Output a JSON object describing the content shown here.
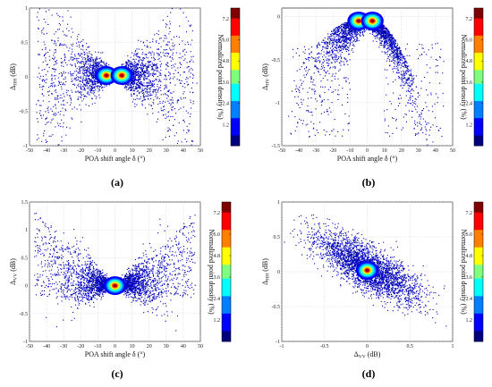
{
  "colorbar": {
    "title": "Normalized point density (%)",
    "ticks": [
      "7.2",
      "6.0",
      "4.8",
      "3.6",
      "2.4",
      "1.2"
    ],
    "colors": [
      "#00007f",
      "#0000ff",
      "#007fff",
      "#00ffff",
      "#7fff7f",
      "#ffff00",
      "#ff7f00",
      "#ff0000",
      "#7f0000"
    ]
  },
  "chart_data": [
    {
      "type": "scatter",
      "panel_label": "(a)",
      "xlabel": "POA shift angle δ (°)",
      "ylabel": "ΔHH (dB)",
      "ylabel_main": "Δ",
      "ylabel_sub": "HH",
      "xlim": [
        -50,
        50
      ],
      "ylim": [
        -1,
        1
      ],
      "xticks": [
        "-50",
        "-40",
        "-30",
        "-20",
        "-10",
        "0",
        "10",
        "20",
        "30",
        "40",
        "50"
      ],
      "yticks": [
        "1",
        "0.5",
        "0",
        "-0.5",
        "-1"
      ],
      "grid": true,
      "pattern": "butterfly_a",
      "density_peaks": [
        [
          -5,
          0.02
        ],
        [
          4,
          0.02
        ]
      ],
      "colorbar_range": [
        0,
        7.8
      ]
    },
    {
      "type": "scatter",
      "panel_label": "(b)",
      "xlabel": "POA shift angle δ (°)",
      "ylabel": "ΔHV (dB)",
      "ylabel_main": "Δ",
      "ylabel_sub": "HV",
      "xlim": [
        -50,
        50
      ],
      "ylim": [
        -1.5,
        0.1
      ],
      "xticks": [
        "-50",
        "-40",
        "-30",
        "-20",
        "-10",
        "0",
        "10",
        "20",
        "30",
        "40",
        "50"
      ],
      "yticks": [
        "0",
        "-0.5",
        "-1",
        "-1.5"
      ],
      "grid": true,
      "pattern": "arch_b",
      "density_peaks": [
        [
          -5,
          -0.05
        ],
        [
          3,
          -0.05
        ]
      ],
      "colorbar_range": [
        0,
        7.8
      ]
    },
    {
      "type": "scatter",
      "panel_label": "(c)",
      "xlabel": "POA shift angle δ (°)",
      "ylabel": "ΔVV (dB)",
      "ylabel_main": "Δ",
      "ylabel_sub": "VV",
      "xlim": [
        -50,
        50
      ],
      "ylim": [
        -1,
        1.5
      ],
      "xticks": [
        "-50",
        "-40",
        "-30",
        "-20",
        "-10",
        "0",
        "10",
        "20",
        "30",
        "40",
        "50"
      ],
      "yticks": [
        "1.5",
        "1",
        "0.5",
        "0",
        "-0.5",
        "-1"
      ],
      "grid": true,
      "pattern": "butterfly_c",
      "density_peaks": [
        [
          0,
          0.0
        ]
      ],
      "colorbar_range": [
        0,
        7.8
      ]
    },
    {
      "type": "scatter",
      "panel_label": "(d)",
      "xlabel": "ΔVV (dB)",
      "ylabel": "ΔHH (dB)",
      "xlabel_main": "Δ",
      "xlabel_sub": "VV",
      "ylabel_main": "Δ",
      "ylabel_sub": "HH",
      "xlim": [
        -1,
        1
      ],
      "ylim": [
        -1,
        1
      ],
      "xticks": [
        "-1",
        "-0.5",
        "0",
        "0.5",
        "1"
      ],
      "yticks": [
        "1",
        "0.5",
        "0",
        "-0.5",
        "-1"
      ],
      "grid": true,
      "pattern": "diagonal_d",
      "density_peaks": [
        [
          0.0,
          0.02
        ]
      ],
      "colorbar_range": [
        0,
        7.8
      ]
    }
  ]
}
